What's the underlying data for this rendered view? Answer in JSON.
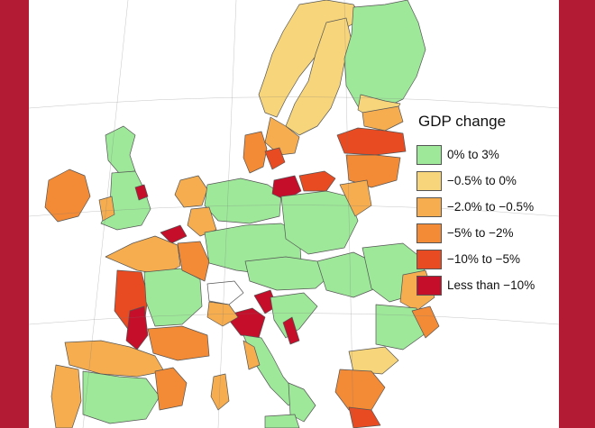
{
  "legend": {
    "title": "GDP change",
    "items": [
      {
        "label": "0% to 3%",
        "color": "#9ee89a"
      },
      {
        "label": "−0.5% to 0%",
        "color": "#f7d57a"
      },
      {
        "label": "−2.0% to −0.5%",
        "color": "#f6ad4f"
      },
      {
        "label": "−5% to −2%",
        "color": "#f28a36"
      },
      {
        "label": "−10% to −5%",
        "color": "#e84a22"
      },
      {
        "label": "Less than −10%",
        "color": "#c40e2a"
      }
    ]
  },
  "colors": {
    "frame": "#b31b34",
    "background": "#ffffff",
    "border": "#555555"
  }
}
